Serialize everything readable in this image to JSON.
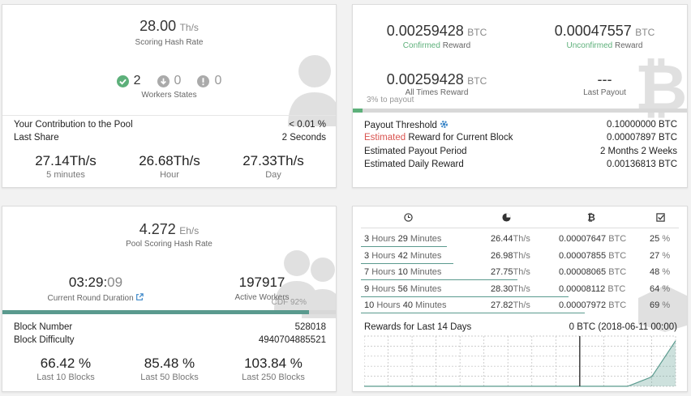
{
  "hashrate": {
    "value": "28.00",
    "unit": "Th/s",
    "caption": "Scoring Hash Rate",
    "workers": {
      "active": "2",
      "inactive": "0",
      "dead": "0",
      "caption": "Workers States"
    },
    "contribution_label": "Your Contribution to the Pool",
    "contribution_value": "< 0.01 %",
    "last_share_label": "Last Share",
    "last_share_value": "2 Seconds",
    "stats": [
      {
        "value": "27.14",
        "unit": "Th/s",
        "caption": "5 minutes"
      },
      {
        "value": "26.68",
        "unit": "Th/s",
        "caption": "Hour"
      },
      {
        "value": "27.33",
        "unit": "Th/s",
        "caption": "Day"
      }
    ]
  },
  "rewards": {
    "confirmed_value": "0.00259428",
    "confirmed_unit": "BTC",
    "confirmed_caption": "Confirmed",
    "unconfirmed_value": "0.00047557",
    "unconfirmed_unit": "BTC",
    "unconfirmed_caption": "Unconfirmed",
    "reward_word": "Reward",
    "all_times_value": "0.00259428",
    "all_times_unit": "BTC",
    "all_times_caption": "All Times Reward",
    "last_payout_value": "---",
    "last_payout_caption": "Last Payout",
    "payout_progress_text": "3% to payout",
    "payout_progress": 0.03,
    "threshold_label": "Payout Threshold",
    "threshold_value": "0.10000000 BTC",
    "estimated_word": "Estimated",
    "estimated_rest": "Reward for Current Block",
    "estimated_value": "0.00007897 BTC",
    "period_label": "Estimated Payout Period",
    "period_value": "2 Months 2 Weeks",
    "daily_label": "Estimated Daily Reward",
    "daily_value": "0.00136813 BTC"
  },
  "pool": {
    "value": "4.272",
    "unit": "Eh/s",
    "caption": "Pool Scoring Hash Rate",
    "round_time_main": "03:29:",
    "round_time_sec": "09",
    "round_caption": "Current Round Duration",
    "workers_value": "197917",
    "workers_caption": "Active Workers",
    "cdf_text": "CDF 92%",
    "cdf_progress": 0.92,
    "block_number_label": "Block Number",
    "block_number_value": "528018",
    "difficulty_label": "Block Difficulty",
    "difficulty_value": "4940704885521",
    "stats": [
      {
        "value": "66.42 %",
        "caption": "Last 10 Blocks"
      },
      {
        "value": "85.48 %",
        "caption": "Last 50 Blocks"
      },
      {
        "value": "103.84 %",
        "caption": "Last 250 Blocks"
      }
    ]
  },
  "history": {
    "rows": [
      {
        "h": "3",
        "hw": "Hours",
        "m": "29",
        "mw": "Minutes",
        "rate": "26.44",
        "reward": "0.00007647",
        "luck": "25",
        "line": 0.27
      },
      {
        "h": "3",
        "hw": "Hours",
        "m": "42",
        "mw": "Minutes",
        "rate": "26.98",
        "reward": "0.00007855",
        "luck": "27",
        "line": 0.29
      },
      {
        "h": "7",
        "hw": "Hours",
        "m": "10",
        "mw": "Minutes",
        "rate": "27.75",
        "reward": "0.00008065",
        "luck": "48",
        "line": 0.49
      },
      {
        "h": "9",
        "hw": "Hours",
        "m": "56",
        "mw": "Minutes",
        "rate": "28.30",
        "reward": "0.00008112",
        "luck": "64",
        "line": 0.65
      },
      {
        "h": "10",
        "hw": "Hours",
        "m": "40",
        "mw": "Minutes",
        "rate": "27.82",
        "reward": "0.00007972",
        "luck": "69",
        "line": 0.7
      }
    ],
    "rate_unit": "Th/s",
    "reward_unit": "BTC",
    "luck_unit": "%",
    "chart_title": "Rewards for Last 14 Days",
    "chart_readout": "0 BTC (2018-06-11 00:00)"
  },
  "chart_data": {
    "type": "area",
    "title": "Rewards for Last 14 Days",
    "x": [
      0,
      1,
      2,
      3,
      4,
      5,
      6,
      7,
      8,
      9,
      10,
      11,
      12,
      13
    ],
    "values": [
      0,
      0,
      0,
      0,
      0,
      0,
      0,
      0,
      0,
      0,
      0,
      0,
      0.00028,
      0.00136
    ],
    "ylim": [
      0,
      0.0015
    ],
    "grid": true,
    "marker_index": 9,
    "color": "#5a9a8e"
  }
}
